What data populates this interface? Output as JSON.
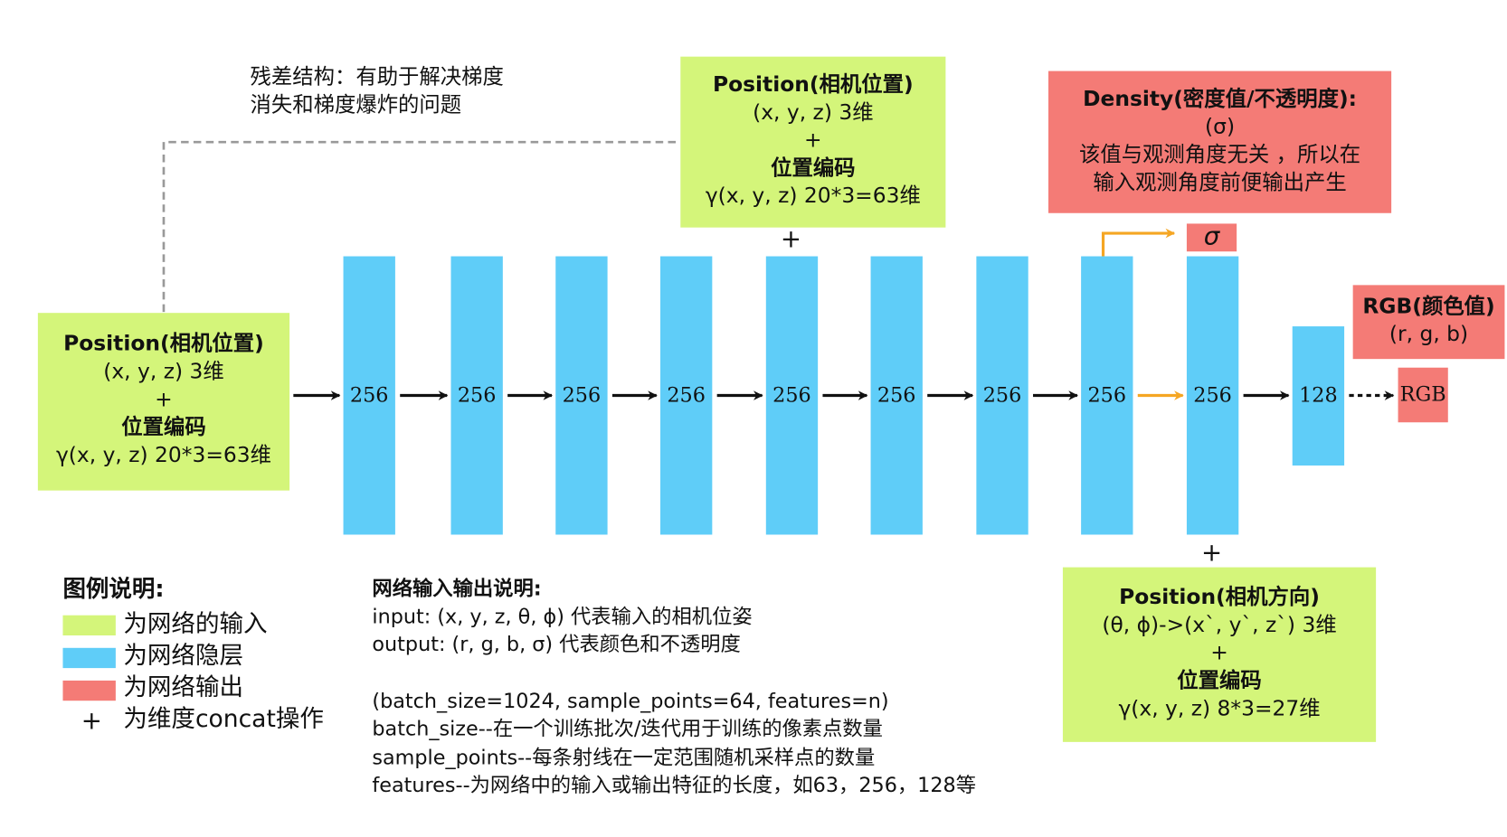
{
  "residual_note": [
    "残差结构：有助于解决梯度",
    "消失和梯度爆炸的问题"
  ],
  "input_position": [
    "Position(相机位置)",
    "(x, y, z) 3维",
    "+",
    "位置编码",
    "γ(x, y, z)  20*3=63维"
  ],
  "skip_position": [
    "Position(相机位置)",
    "(x, y, z) 3维",
    "+",
    "位置编码",
    "γ(x, y, z)  20*3=63维"
  ],
  "skip_plus": "+",
  "density": [
    "Density(密度值/不透明度):",
    "(σ)",
    "该值与观测角度无关 ，所以在",
    "输入观测角度前便输出产生"
  ],
  "sigma": "σ",
  "rgb_output": [
    "RGB(颜色值)",
    "(r, g, b)"
  ],
  "rgb": "RGB",
  "layers": [
    "256",
    "256",
    "256",
    "256",
    "256",
    "256",
    "256",
    "256",
    "256",
    "128"
  ],
  "direction_plus": "+",
  "direction": [
    "Position(相机方向)",
    "(θ, ϕ)->(x`, y`, z`) 3维",
    "+",
    "位置编码",
    "γ(x, y, z)  8*3=27维"
  ],
  "legend": {
    "title": "图例说明:",
    "items": [
      "为网络的输入",
      "为网络隐层",
      "为网络输出",
      "为维度concat操作"
    ],
    "plus": "+"
  },
  "io_note": {
    "title": "网络输入输出说明:",
    "lines": [
      "input: (x, y, z, θ, ϕ) 代表输入的相机位姿",
      "output: (r, g, b, σ) 代表颜色和不透明度",
      "(batch_size=1024, sample_points=64, features=n)",
      "batch_size--在一个训练批次/迭代用于训练的像素点数量",
      "sample_points--每条射线在一定范围随机采样点的数量",
      "features--为网络中的输入或输出特征的长度，如63，256，128等"
    ]
  }
}
